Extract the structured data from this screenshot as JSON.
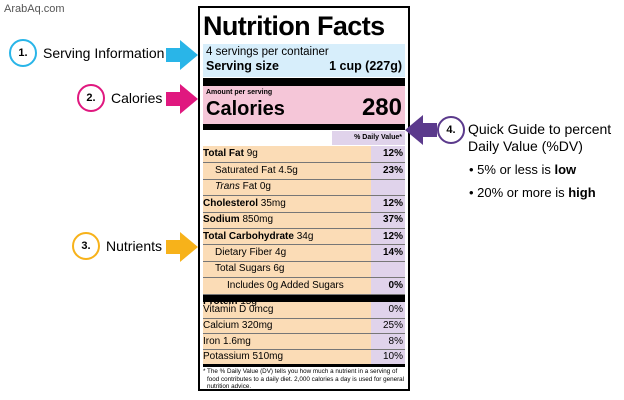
{
  "watermark": "ArabAq.com",
  "label": {
    "title": "Nutrition Facts",
    "servings_per_container": "4 servings per container",
    "serving_size_label": "Serving size",
    "serving_size_value": "1 cup (227g)",
    "amount_per_serving": "Amount per serving",
    "calories_label": "Calories",
    "calories_value": "280",
    "dv_header": "% Daily Value*",
    "nutrients": [
      {
        "bold": "Total Fat",
        "name": " 9g",
        "dv": "12%",
        "indent": 0
      },
      {
        "bold": "",
        "name": "Saturated Fat 4.5g",
        "dv": "23%",
        "indent": 1
      },
      {
        "bold": "",
        "italic": "Trans",
        "name": " Fat 0g",
        "dv": "",
        "indent": 1
      },
      {
        "bold": "Cholesterol",
        "name": " 35mg",
        "dv": "12%",
        "indent": 0
      },
      {
        "bold": "Sodium",
        "name": " 850mg",
        "dv": "37%",
        "indent": 0
      },
      {
        "bold": "Total Carbohydrate",
        "name": " 34g",
        "dv": "12%",
        "indent": 0
      },
      {
        "bold": "",
        "name": "Dietary Fiber 4g",
        "dv": "14%",
        "indent": 1
      },
      {
        "bold": "",
        "name": "Total Sugars 6g",
        "dv": "",
        "indent": 1
      },
      {
        "bold": "",
        "name": "Includes 0g Added Sugars",
        "dv": "0%",
        "indent": 2
      },
      {
        "bold": "Protein",
        "name": " 15g",
        "dv": "",
        "indent": 0
      }
    ],
    "vitamins": [
      {
        "name": "Vitamin D 0mcg",
        "dv": "0%"
      },
      {
        "name": "Calcium 320mg",
        "dv": "25%"
      },
      {
        "name": "Iron 1.6mg",
        "dv": "8%"
      },
      {
        "name": "Potassium 510mg",
        "dv": "10%"
      }
    ],
    "footnote_star": "*",
    "footnote": "The % Daily Value (DV) tells you how much a nutrient in a serving of food contributes to a daily diet. 2,000 calories a day is used for general nutrition advice."
  },
  "callouts": [
    {
      "number": "1.",
      "text": "Serving Information",
      "color": "#29b5e8"
    },
    {
      "number": "2.",
      "text": "Calories",
      "color": "#e0187f"
    },
    {
      "number": "3.",
      "text": "Nutrients",
      "color": "#f7b21a"
    },
    {
      "number": "4.",
      "color": "#5b3a8c"
    }
  ],
  "guide": {
    "title_line1": "Quick Guide to percent",
    "title_line2": "Daily Value (%DV)",
    "low_prefix": "• 5% or less is ",
    "low_word": "low",
    "high_prefix": "• 20% or more is ",
    "high_word": "high"
  }
}
